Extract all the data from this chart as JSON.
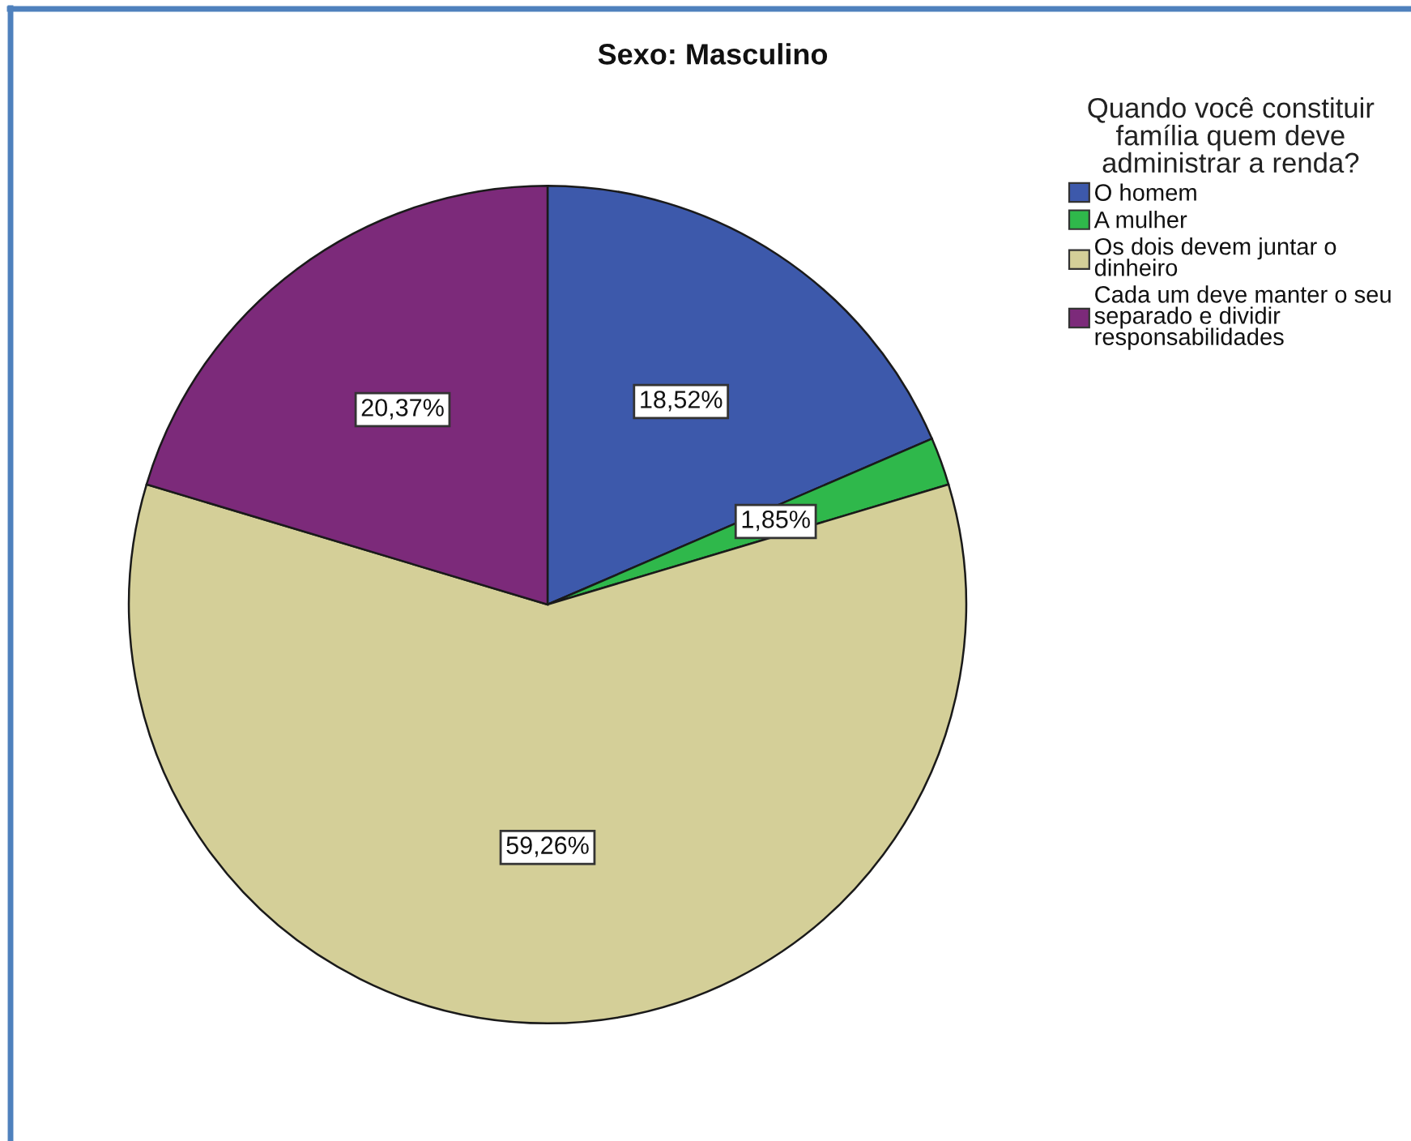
{
  "chart_data": {
    "type": "pie",
    "title": "Sexo: Masculino",
    "legend_title": "Quando você constituir\nfamília quem deve\nadministrar a renda?",
    "categories": [
      "O homem",
      "A mulher",
      "Os dois devem juntar o\ndinheiro",
      "Cada um deve manter o seu\nseparado e dividir\nresponsabilidades"
    ],
    "values": [
      18.52,
      1.85,
      59.26,
      20.37
    ],
    "colors": [
      "#3d59ab",
      "#2fb84b",
      "#d4cf98",
      "#7c2a7a"
    ],
    "value_labels": [
      "18,52%",
      "1,85%",
      "59,26%",
      "20,37%"
    ],
    "legend": "right"
  }
}
